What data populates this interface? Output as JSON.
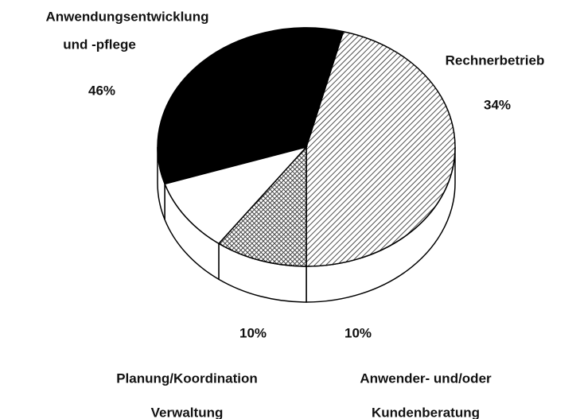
{
  "chart_data": {
    "type": "pie3d",
    "categories": [
      [
        "Anwendungsentwicklung",
        "und -pflege"
      ],
      [
        "Rechnerbetrieb"
      ],
      [
        "Planung/Koordination",
        "Verwaltung"
      ],
      [
        "Anwender- und/oder",
        "Kundenberatung"
      ]
    ],
    "values": [
      46,
      34,
      10,
      10
    ],
    "value_labels": [
      "46%",
      "34%",
      "10%",
      "10%"
    ],
    "colors": [
      "#222222",
      "#000000",
      "#ffffff",
      "#333333"
    ],
    "hatch": [
      "diagonal",
      null,
      null,
      "cross"
    ]
  }
}
